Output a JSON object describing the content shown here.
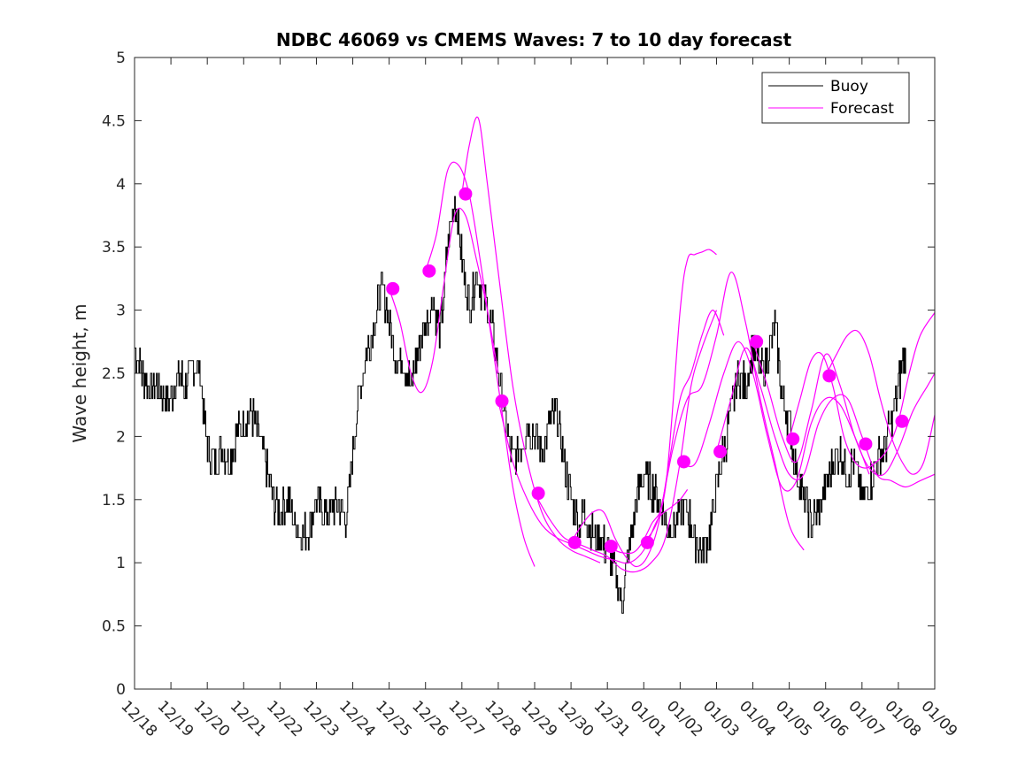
{
  "chart_data": {
    "type": "line",
    "title": "NDBC 46069 vs CMEMS Waves: 7 to 10 day forecast",
    "xlabel": "",
    "ylabel": "Wave height, m",
    "xlim": [
      0,
      22
    ],
    "ylim": [
      0,
      5
    ],
    "yticks": [
      0,
      0.5,
      1,
      1.5,
      2,
      2.5,
      3,
      3.5,
      4,
      4.5,
      5
    ],
    "ytick_labels": [
      "0",
      "0.5",
      "1",
      "1.5",
      "2",
      "2.5",
      "3",
      "3.5",
      "4",
      "4.5",
      "5"
    ],
    "xtick_labels": [
      "12/18",
      "12/19",
      "12/20",
      "12/21",
      "12/22",
      "12/23",
      "12/24",
      "12/25",
      "12/26",
      "12/27",
      "12/28",
      "12/29",
      "12/30",
      "12/31",
      "01/01",
      "01/02",
      "01/03",
      "01/04",
      "01/05",
      "01/06",
      "01/07",
      "01/08",
      "01/09"
    ],
    "legend": {
      "position": "top-right",
      "entries": [
        {
          "label": "Buoy",
          "color": "#000000"
        },
        {
          "label": "Forecast",
          "color": "#ff00ff"
        }
      ]
    },
    "buoy": {
      "name": "Buoy",
      "color": "#000000",
      "x": [
        0,
        0.2,
        0.4,
        0.6,
        0.8,
        1.0,
        1.2,
        1.4,
        1.6,
        1.8,
        2.0,
        2.2,
        2.4,
        2.6,
        2.8,
        3.0,
        3.2,
        3.4,
        3.6,
        3.8,
        4.0,
        4.2,
        4.4,
        4.6,
        4.8,
        5.0,
        5.2,
        5.4,
        5.6,
        5.8,
        6.0,
        6.2,
        6.4,
        6.6,
        6.8,
        7.0,
        7.2,
        7.4,
        7.6,
        7.8,
        8.0,
        8.2,
        8.4,
        8.6,
        8.8,
        9.0,
        9.2,
        9.4,
        9.6,
        9.8,
        10.0,
        10.2,
        10.4,
        10.6,
        10.8,
        11.0,
        11.2,
        11.4,
        11.6,
        11.8,
        12.0,
        12.2,
        12.4,
        12.6,
        12.8,
        13.0,
        13.2,
        13.4,
        13.6,
        13.8,
        14.0,
        14.2,
        14.4,
        14.6,
        14.8,
        15.0,
        15.2,
        15.4,
        15.6,
        15.8,
        16.0,
        16.2,
        16.4,
        16.6,
        16.8,
        17.0,
        17.2,
        17.4,
        17.6,
        17.8,
        18.0,
        18.2,
        18.4,
        18.6,
        18.8,
        19.0,
        19.2,
        19.4,
        19.6,
        19.8,
        20.0,
        20.2,
        20.4,
        20.6,
        20.8,
        21.0,
        21.2
      ],
      "y": [
        2.7,
        2.5,
        2.4,
        2.4,
        2.3,
        2.3,
        2.5,
        2.4,
        2.6,
        2.5,
        1.9,
        1.8,
        1.9,
        1.8,
        2.0,
        2.1,
        2.2,
        2.0,
        1.8,
        1.5,
        1.4,
        1.5,
        1.3,
        1.2,
        1.3,
        1.5,
        1.4,
        1.4,
        1.5,
        1.3,
        1.9,
        2.4,
        2.7,
        2.9,
        3.2,
        2.9,
        2.6,
        2.6,
        2.4,
        2.7,
        2.9,
        3.1,
        2.8,
        3.5,
        3.9,
        3.4,
        3.0,
        3.3,
        3.1,
        2.9,
        2.5,
        2.1,
        1.8,
        1.9,
        2.1,
        2.0,
        1.9,
        2.1,
        2.2,
        1.8,
        1.5,
        1.3,
        1.4,
        1.2,
        1.2,
        1.1,
        0.9,
        0.7,
        1.1,
        1.5,
        1.7,
        1.6,
        1.5,
        1.3,
        1.3,
        1.4,
        1.4,
        1.2,
        1.1,
        1.2,
        1.6,
        1.9,
        2.2,
        2.5,
        2.4,
        2.7,
        2.5,
        2.6,
        2.9,
        2.3,
        2.1,
        1.7,
        1.5,
        1.3,
        1.4,
        1.6,
        1.8,
        1.9,
        1.7,
        1.8,
        1.5,
        1.6,
        1.8,
        1.9,
        2.1,
        2.4,
        2.7
      ]
    },
    "forecast_series": [
      {
        "name": "Forecast",
        "color": "#ff00ff",
        "x": [
          7.0,
          7.3,
          7.6,
          7.9,
          8.2,
          8.5,
          8.8,
          9.1,
          9.4,
          9.7,
          10.0
        ],
        "y": [
          3.17,
          2.9,
          2.5,
          2.35,
          2.6,
          3.2,
          3.75,
          3.75,
          3.4,
          3.0,
          2.5
        ]
      },
      {
        "name": "Forecast",
        "color": "#ff00ff",
        "x": [
          8.0,
          8.3,
          8.6,
          8.9,
          9.2,
          9.5,
          9.8,
          10.1,
          10.4,
          10.7,
          11.0
        ],
        "y": [
          3.31,
          3.6,
          4.1,
          4.15,
          3.92,
          3.4,
          2.8,
          2.2,
          1.6,
          1.2,
          0.97
        ]
      },
      {
        "name": "Forecast",
        "color": "#ff00ff",
        "x": [
          9.0,
          9.2,
          9.45,
          9.7,
          10.0,
          10.4,
          10.8,
          11.2,
          11.6,
          12.0,
          12.4,
          12.8
        ],
        "y": [
          3.92,
          4.3,
          4.52,
          4.0,
          3.3,
          2.4,
          1.8,
          1.4,
          1.2,
          1.1,
          1.05,
          1.0
        ]
      },
      {
        "name": "Forecast",
        "color": "#ff00ff",
        "x": [
          10.0,
          10.4,
          10.8,
          11.2,
          11.6,
          12.0,
          12.4,
          12.8,
          13.2,
          13.6,
          14.0,
          14.4,
          14.8,
          15.0,
          15.2
        ],
        "y": [
          2.28,
          1.8,
          1.5,
          1.3,
          1.2,
          1.15,
          1.1,
          1.05,
          1.02,
          1.0,
          1.1,
          1.35,
          1.45,
          1.5,
          1.58
        ]
      },
      {
        "name": "Forecast",
        "color": "#ff00ff",
        "x": [
          11.0,
          11.4,
          11.8,
          12.2,
          12.6,
          13.0,
          13.4,
          13.8,
          14.2,
          14.6,
          15.0,
          15.3,
          15.6,
          16.0
        ],
        "y": [
          1.55,
          1.35,
          1.2,
          1.15,
          1.1,
          1.05,
          0.95,
          0.93,
          1.0,
          1.2,
          1.8,
          2.4,
          2.7,
          3.0
        ]
      },
      {
        "name": "Forecast",
        "color": "#ff00ff",
        "x": [
          12.0,
          12.3,
          12.6,
          12.9,
          13.2,
          13.5,
          13.8,
          14.1,
          14.4,
          14.7,
          15.0,
          15.3,
          15.6,
          15.9,
          16.2
        ],
        "y": [
          1.16,
          1.3,
          1.4,
          1.4,
          1.2,
          1.05,
          0.97,
          1.05,
          1.3,
          1.8,
          2.3,
          2.5,
          2.8,
          3.0,
          2.8
        ]
      },
      {
        "name": "Forecast",
        "color": "#ff00ff",
        "x": [
          13.0,
          13.4,
          13.8,
          14.2,
          14.6,
          15.0,
          15.2,
          15.4,
          15.6,
          15.8,
          16.0
        ],
        "y": [
          1.13,
          1.08,
          1.1,
          1.3,
          1.6,
          3.0,
          3.4,
          3.44,
          3.46,
          3.48,
          3.44
        ]
      },
      {
        "name": "Forecast",
        "color": "#ff00ff",
        "x": [
          14.0,
          14.4,
          14.8,
          15.2,
          15.6,
          16.0,
          16.4,
          16.8,
          17.2,
          17.6,
          18.0,
          18.4
        ],
        "y": [
          1.16,
          1.35,
          1.9,
          2.3,
          2.4,
          2.8,
          3.3,
          2.9,
          2.3,
          1.8,
          1.3,
          1.1
        ]
      },
      {
        "name": "Forecast",
        "color": "#ff00ff",
        "x": [
          15.0,
          15.4,
          15.8,
          16.2,
          16.6,
          17.0,
          17.4,
          17.8,
          18.2,
          18.6,
          19.0,
          19.4,
          19.8,
          20.2
        ],
        "y": [
          1.8,
          1.78,
          2.1,
          2.5,
          2.75,
          2.5,
          2.0,
          1.6,
          1.65,
          2.1,
          2.3,
          2.25,
          2.0,
          1.7
        ]
      },
      {
        "name": "Forecast",
        "color": "#ff00ff",
        "x": [
          16.0,
          16.4,
          16.8,
          17.2,
          17.6,
          18.0,
          18.4,
          18.8,
          19.2,
          19.6,
          20.0,
          20.4,
          20.8,
          21.2,
          21.6,
          22.0
        ],
        "y": [
          1.88,
          2.3,
          2.7,
          2.4,
          2.0,
          1.7,
          1.7,
          2.1,
          2.3,
          2.3,
          2.0,
          1.7,
          1.65,
          1.6,
          1.65,
          1.7
        ]
      },
      {
        "name": "Forecast",
        "color": "#ff00ff",
        "x": [
          17.0,
          17.4,
          17.8,
          18.2,
          18.6,
          19.0,
          19.4,
          19.8,
          20.2,
          20.6,
          21.0,
          21.4,
          21.8,
          22.0
        ],
        "y": [
          2.75,
          2.4,
          2.0,
          1.8,
          2.2,
          2.65,
          2.4,
          2.0,
          1.75,
          1.7,
          1.9,
          2.2,
          2.4,
          2.5
        ]
      },
      {
        "name": "Forecast",
        "color": "#ff00ff",
        "x": [
          18.0,
          18.3,
          18.6,
          18.9,
          19.2,
          19.5,
          19.8,
          20.1,
          20.4,
          20.7,
          21.0,
          21.3,
          21.6,
          22.0
        ],
        "y": [
          1.98,
          2.3,
          2.6,
          2.65,
          2.4,
          2.0,
          1.8,
          1.75,
          1.8,
          1.9,
          2.12,
          2.5,
          2.8,
          2.98
        ]
      },
      {
        "name": "Forecast",
        "color": "#ff00ff",
        "x": [
          19.0,
          19.3,
          19.6,
          19.9,
          20.2,
          20.5,
          20.8,
          21.1,
          21.4,
          21.7,
          22.0
        ],
        "y": [
          2.48,
          2.65,
          2.8,
          2.83,
          2.65,
          2.3,
          2.0,
          1.8,
          1.7,
          1.8,
          2.17
        ]
      }
    ],
    "forecast_markers": {
      "name": "Forecast",
      "color": "#ff00ff",
      "x": [
        7.1,
        8.1,
        9.1,
        10.1,
        11.1,
        12.1,
        13.1,
        14.1,
        15.1,
        16.1,
        17.1,
        18.1,
        19.1,
        20.1,
        21.1
      ],
      "y": [
        3.17,
        3.31,
        3.92,
        2.28,
        1.55,
        1.16,
        1.13,
        1.16,
        1.8,
        1.88,
        2.75,
        1.98,
        2.48,
        1.94,
        2.12
      ]
    }
  }
}
